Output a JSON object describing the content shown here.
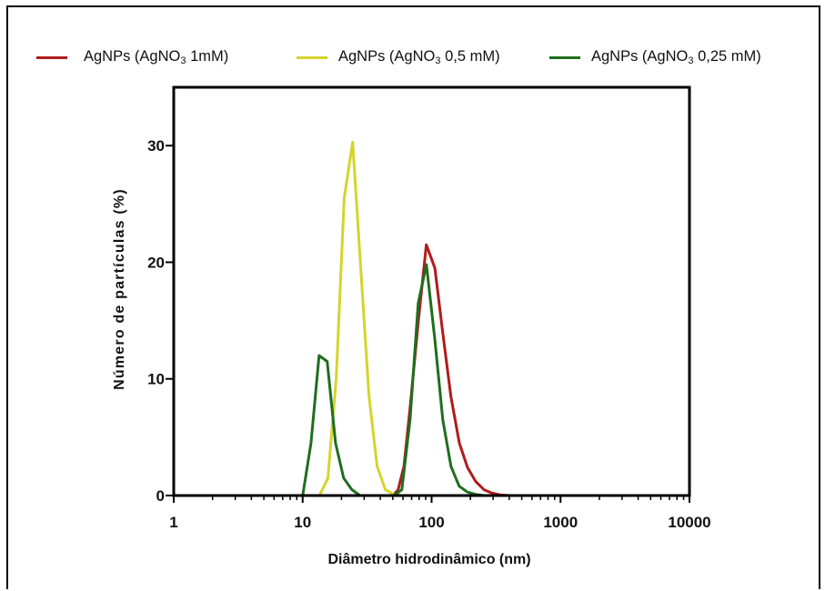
{
  "chart_data": {
    "type": "line",
    "title": "",
    "xlabel": "Diâmetro hidrodinâmico (nm)",
    "ylabel": "Número de partículas (%)",
    "xscale": "log",
    "xlim": [
      1,
      10000
    ],
    "ylim": [
      0,
      35
    ],
    "xticks": [
      1,
      10,
      100,
      1000,
      10000
    ],
    "xtick_labels": [
      "1",
      "10",
      "100",
      "1000",
      "10000"
    ],
    "yticks": [
      0,
      10,
      20,
      30
    ],
    "ytick_labels": [
      "0",
      "10",
      "20",
      "30"
    ],
    "grid": false,
    "legend_position": "top",
    "series": [
      {
        "name": "AgNPs (AgNO3 1mM)",
        "color": "#b01c1c",
        "x": [
          1,
          10,
          50,
          55,
          61,
          68,
          79,
          91,
          106,
          122,
          141,
          164,
          190,
          220,
          255,
          295,
          342,
          400,
          1000,
          10000
        ],
        "y": [
          0,
          0,
          0,
          0.5,
          2.5,
          7.5,
          15,
          21.5,
          19.5,
          14,
          8.5,
          4.5,
          2.4,
          1.2,
          0.5,
          0.2,
          0.05,
          0,
          0,
          0
        ]
      },
      {
        "name": "AgNPs (AgNO3 0,5 mM)",
        "color": "#d4d42e",
        "x": [
          1,
          10,
          13.5,
          15.7,
          18.2,
          21.0,
          24.4,
          28.2,
          32.7,
          37.8,
          43.8,
          50.8,
          58.7,
          68,
          1000,
          10000
        ],
        "y": [
          0,
          0,
          0,
          1.5,
          10,
          25.5,
          30.3,
          19.5,
          8.5,
          2.5,
          0.5,
          0.1,
          0,
          0,
          0,
          0
        ]
      },
      {
        "name": "AgNPs (AgNO3 0,25 mM)",
        "color": "#1f6e1f",
        "x": [
          1,
          10,
          11.6,
          13.4,
          15.5,
          18.0,
          20.8,
          24.1,
          27.9,
          50.8,
          58.8,
          68.1,
          78.8,
          91.2,
          105.6,
          122.2,
          141.4,
          163.7,
          189.5,
          219.3,
          253.9,
          400,
          1000,
          10000
        ],
        "y": [
          0,
          0,
          4.5,
          12,
          11.5,
          4.5,
          1.5,
          0.5,
          0,
          0,
          0.5,
          6.5,
          16.5,
          19.8,
          13.5,
          6.5,
          2.5,
          0.8,
          0.3,
          0.1,
          0,
          0,
          0,
          0
        ]
      }
    ]
  }
}
